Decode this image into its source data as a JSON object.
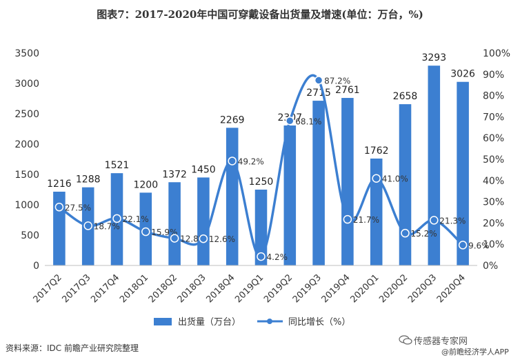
{
  "chart_data": {
    "type": "bar+line",
    "title": "图表7：2017-2020年中国可穿戴设备出货量及增速(单位：万台，%)",
    "categories": [
      "2017Q2",
      "2017Q3",
      "2017Q4",
      "2018Q1",
      "2018Q2",
      "2018Q3",
      "2018Q4",
      "2019Q1",
      "2019Q2",
      "2019Q3",
      "2019Q4",
      "2020Q1",
      "2020Q2",
      "2020Q3",
      "2020Q4"
    ],
    "series": [
      {
        "name": "出货量（万台）",
        "type": "bar",
        "axis": "left",
        "color": "#3c7fd1",
        "values": [
          1216,
          1288,
          1521,
          1200,
          1372,
          1450,
          2269,
          1250,
          2307,
          2715,
          2761,
          1762,
          2658,
          3293,
          3026
        ],
        "labels": [
          "1216",
          "1288",
          "1521",
          "1200",
          "1372",
          "1450",
          "2269",
          "1250",
          "2307",
          "2715",
          "2761",
          "1762",
          "2658",
          "3293",
          "3026"
        ]
      },
      {
        "name": "同比增长（%）",
        "type": "line",
        "axis": "right",
        "color": "#3c7fd1",
        "values": [
          27.5,
          18.7,
          22.1,
          15.9,
          12.8,
          12.6,
          49.2,
          4.2,
          68.1,
          87.2,
          21.7,
          41.0,
          15.2,
          21.3,
          9.6
        ],
        "labels": [
          "27.5%",
          "18.7%",
          "22.1%",
          "15.9%",
          "12.8%",
          "12.6%",
          "49.2%",
          "4.2%",
          "68.1%",
          "87.2%",
          "21.7%",
          "41.0%",
          "15.2%",
          "21.3%",
          "9.6%"
        ]
      }
    ],
    "y_left": {
      "min": 0,
      "max": 3500,
      "ticks": [
        "0",
        "500",
        "1000",
        "1500",
        "2000",
        "2500",
        "3000",
        "3500"
      ]
    },
    "y_right": {
      "min": 0,
      "max": 100,
      "ticks": [
        "0%",
        "10%",
        "20%",
        "30%",
        "40%",
        "50%",
        "60%",
        "70%",
        "80%",
        "90%",
        "100%"
      ]
    },
    "grid": false,
    "legend": "bottom"
  },
  "legend": {
    "bar_label": "出货量（万台）",
    "line_label": "同比增长（%）"
  },
  "source": "资料来源：IDC 前瞻产业研究院整理",
  "watermark": {
    "text": "传感器专家网",
    "sub": "@前瞻经济学人APP"
  }
}
